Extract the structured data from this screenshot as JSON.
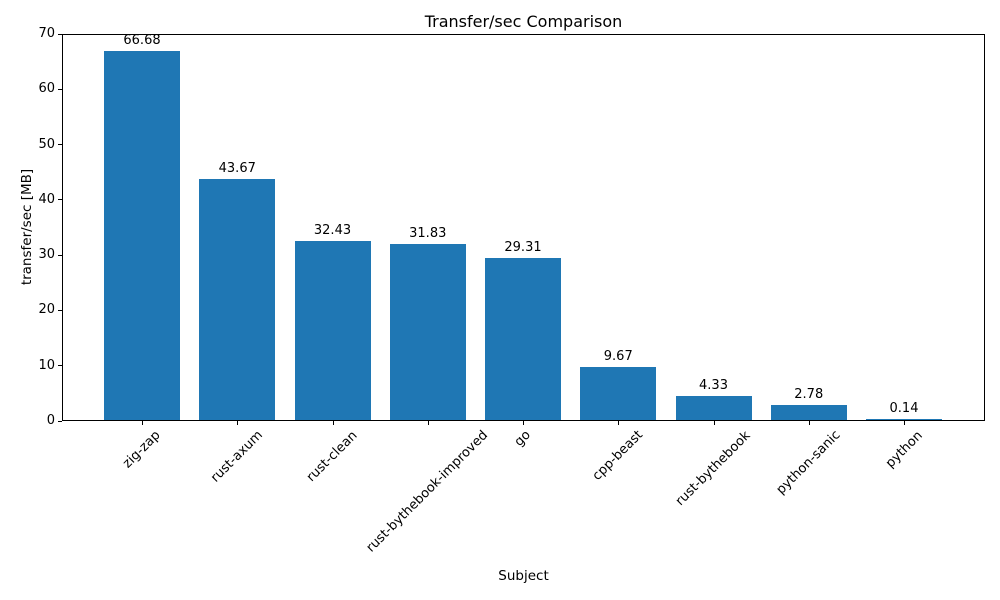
{
  "chart_data": {
    "type": "bar",
    "title": "Transfer/sec Comparison",
    "xlabel": "Subject",
    "ylabel": "transfer/sec [MB]",
    "categories": [
      "zig-zap",
      "rust-axum",
      "rust-clean",
      "rust-bythebook-improved",
      "go",
      "cpp-beast",
      "rust-bythebook",
      "python-sanic",
      "python"
    ],
    "values": [
      66.68,
      43.67,
      32.43,
      31.83,
      29.31,
      9.67,
      4.33,
      2.78,
      0.14
    ],
    "bar_value_labels": [
      "66.68",
      "43.67",
      "32.43",
      "31.83",
      "29.31",
      "9.67",
      "4.33",
      "2.78",
      "0.14"
    ],
    "ylim": [
      0,
      70
    ],
    "yticks": [
      0,
      10,
      20,
      30,
      40,
      50,
      60,
      70
    ],
    "ytick_labels": [
      "0",
      "10",
      "20",
      "30",
      "40",
      "50",
      "60",
      "70"
    ],
    "bar_color": "#1f77b4",
    "grid": false,
    "legend_position": "none",
    "x_tick_rotation_deg": 45
  }
}
